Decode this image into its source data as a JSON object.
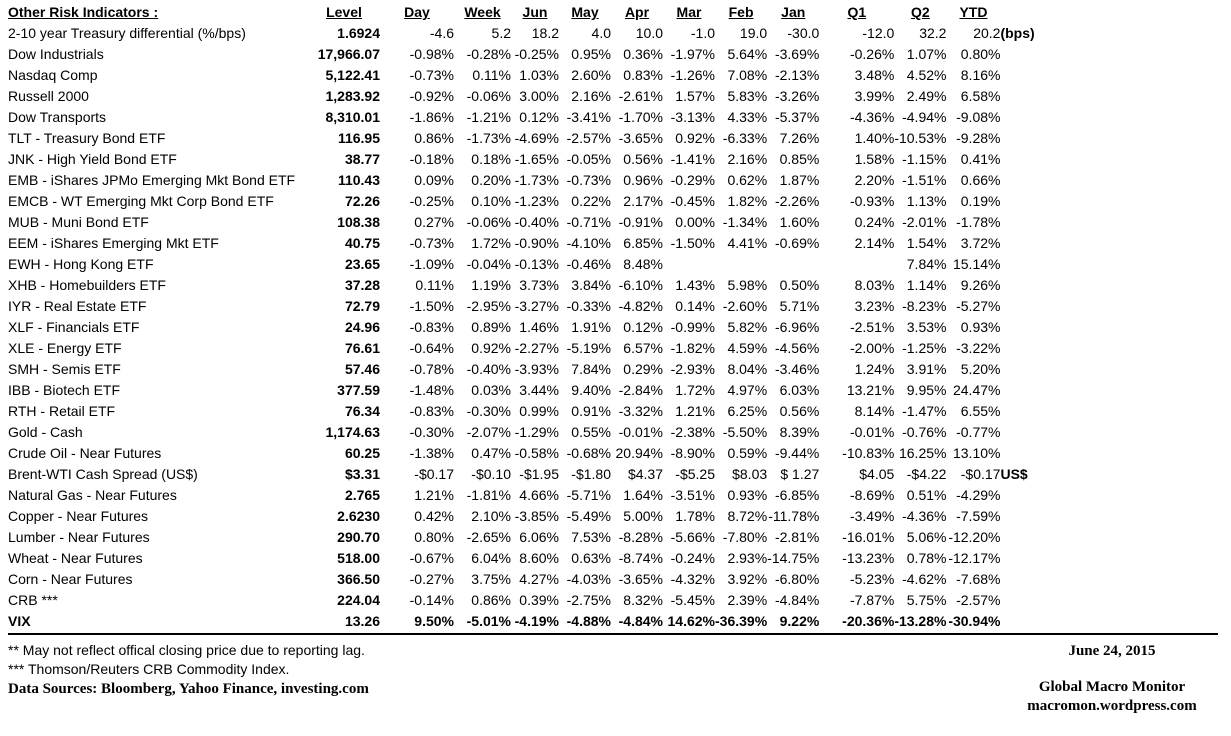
{
  "header": {
    "title": "Other Risk Indicators :",
    "columns": [
      "Level",
      "Day",
      "Week",
      "Jun",
      "May",
      "Apr",
      "Mar",
      "Feb",
      "Jan",
      "Q1",
      "Q2",
      "YTD"
    ]
  },
  "table": {
    "rows": [
      {
        "label": "2-10 year Treasury differential (%/bps)",
        "level": "1.6924",
        "values": [
          "-4.6",
          "5.2",
          "18.2",
          "4.0",
          "10.0",
          "-1.0",
          "19.0",
          "-30.0",
          "-12.0",
          "32.2",
          "20.2"
        ],
        "suffix": "(bps)",
        "bold": false
      },
      {
        "label": "Dow Industrials",
        "level": "17,966.07",
        "values": [
          "-0.98%",
          "-0.28%",
          "-0.25%",
          "0.95%",
          "0.36%",
          "-1.97%",
          "5.64%",
          "-3.69%",
          "-0.26%",
          "1.07%",
          "0.80%"
        ],
        "suffix": "",
        "bold": false
      },
      {
        "label": "Nasdaq Comp",
        "level": "5,122.41",
        "values": [
          "-0.73%",
          "0.11%",
          "1.03%",
          "2.60%",
          "0.83%",
          "-1.26%",
          "7.08%",
          "-2.13%",
          "3.48%",
          "4.52%",
          "8.16%"
        ],
        "suffix": "",
        "bold": false
      },
      {
        "label": "Russell 2000",
        "level": "1,283.92",
        "values": [
          "-0.92%",
          "-0.06%",
          "3.00%",
          "2.16%",
          "-2.61%",
          "1.57%",
          "5.83%",
          "-3.26%",
          "3.99%",
          "2.49%",
          "6.58%"
        ],
        "suffix": "",
        "bold": false
      },
      {
        "label": "Dow Transports",
        "level": "8,310.01",
        "values": [
          "-1.86%",
          "-1.21%",
          "0.12%",
          "-3.41%",
          "-1.70%",
          "-3.13%",
          "4.33%",
          "-5.37%",
          "-4.36%",
          "-4.94%",
          "-9.08%"
        ],
        "suffix": "",
        "bold": false
      },
      {
        "label": "TLT - Treasury Bond ETF",
        "level": "116.95",
        "values": [
          "0.86%",
          "-1.73%",
          "-4.69%",
          "-2.57%",
          "-3.65%",
          "0.92%",
          "-6.33%",
          "7.26%",
          "1.40%",
          "-10.53%",
          "-9.28%"
        ],
        "suffix": "",
        "bold": false
      },
      {
        "label": "JNK - High Yield Bond ETF",
        "level": "38.77",
        "values": [
          "-0.18%",
          "0.18%",
          "-1.65%",
          "-0.05%",
          "0.56%",
          "-1.41%",
          "2.16%",
          "0.85%",
          "1.58%",
          "-1.15%",
          "0.41%"
        ],
        "suffix": "",
        "bold": false
      },
      {
        "label": "EMB - iShares JPMo Emerging Mkt Bond ETF",
        "level": "110.43",
        "values": [
          "0.09%",
          "0.20%",
          "-1.73%",
          "-0.73%",
          "0.96%",
          "-0.29%",
          "0.62%",
          "1.87%",
          "2.20%",
          "-1.51%",
          "0.66%"
        ],
        "suffix": "",
        "bold": false
      },
      {
        "label": "EMCB - WT Emerging Mkt Corp Bond ETF",
        "level": "72.26",
        "values": [
          "-0.25%",
          "0.10%",
          "-1.23%",
          "0.22%",
          "2.17%",
          "-0.45%",
          "1.82%",
          "-2.26%",
          "-0.93%",
          "1.13%",
          "0.19%"
        ],
        "suffix": "",
        "bold": false
      },
      {
        "label": "MUB - Muni Bond ETF",
        "level": "108.38",
        "values": [
          "0.27%",
          "-0.06%",
          "-0.40%",
          "-0.71%",
          "-0.91%",
          "0.00%",
          "-1.34%",
          "1.60%",
          "0.24%",
          "-2.01%",
          "-1.78%"
        ],
        "suffix": "",
        "bold": false
      },
      {
        "label": "EEM - iShares Emerging Mkt ETF",
        "level": "40.75",
        "values": [
          "-0.73%",
          "1.72%",
          "-0.90%",
          "-4.10%",
          "6.85%",
          "-1.50%",
          "4.41%",
          "-0.69%",
          "2.14%",
          "1.54%",
          "3.72%"
        ],
        "suffix": "",
        "bold": false
      },
      {
        "label": "EWH - Hong Kong ETF",
        "level": "23.65",
        "values": [
          "-1.09%",
          "-0.04%",
          "-0.13%",
          "-0.46%",
          "8.48%",
          "",
          "",
          "",
          "",
          "7.84%",
          "15.14%"
        ],
        "suffix": "",
        "bold": false
      },
      {
        "label": "XHB - Homebuilders ETF",
        "level": "37.28",
        "values": [
          "0.11%",
          "1.19%",
          "3.73%",
          "3.84%",
          "-6.10%",
          "1.43%",
          "5.98%",
          "0.50%",
          "8.03%",
          "1.14%",
          "9.26%"
        ],
        "suffix": "",
        "bold": false
      },
      {
        "label": "IYR - Real Estate ETF",
        "level": "72.79",
        "values": [
          "-1.50%",
          "-2.95%",
          "-3.27%",
          "-0.33%",
          "-4.82%",
          "0.14%",
          "-2.60%",
          "5.71%",
          "3.23%",
          "-8.23%",
          "-5.27%"
        ],
        "suffix": "",
        "bold": false
      },
      {
        "label": "XLF - Financials ETF",
        "level": "24.96",
        "values": [
          "-0.83%",
          "0.89%",
          "1.46%",
          "1.91%",
          "0.12%",
          "-0.99%",
          "5.82%",
          "-6.96%",
          "-2.51%",
          "3.53%",
          "0.93%"
        ],
        "suffix": "",
        "bold": false
      },
      {
        "label": "XLE - Energy ETF",
        "level": "76.61",
        "values": [
          "-0.64%",
          "0.92%",
          "-2.27%",
          "-5.19%",
          "6.57%",
          "-1.82%",
          "4.59%",
          "-4.56%",
          "-2.00%",
          "-1.25%",
          "-3.22%"
        ],
        "suffix": "",
        "bold": false
      },
      {
        "label": "SMH - Semis ETF",
        "level": "57.46",
        "values": [
          "-0.78%",
          "-0.40%",
          "-3.93%",
          "7.84%",
          "0.29%",
          "-2.93%",
          "8.04%",
          "-3.46%",
          "1.24%",
          "3.91%",
          "5.20%"
        ],
        "suffix": "",
        "bold": false
      },
      {
        "label": "IBB - Biotech ETF",
        "level": "377.59",
        "values": [
          "-1.48%",
          "0.03%",
          "3.44%",
          "9.40%",
          "-2.84%",
          "1.72%",
          "4.97%",
          "6.03%",
          "13.21%",
          "9.95%",
          "24.47%"
        ],
        "suffix": "",
        "bold": false
      },
      {
        "label": "RTH - Retail ETF",
        "level": "76.34",
        "values": [
          "-0.83%",
          "-0.30%",
          "0.99%",
          "0.91%",
          "-3.32%",
          "1.21%",
          "6.25%",
          "0.56%",
          "8.14%",
          "-1.47%",
          "6.55%"
        ],
        "suffix": "",
        "bold": false
      },
      {
        "label": "Gold - Cash",
        "level": "1,174.63",
        "values": [
          "-0.30%",
          "-2.07%",
          "-1.29%",
          "0.55%",
          "-0.01%",
          "-2.38%",
          "-5.50%",
          "8.39%",
          "-0.01%",
          "-0.76%",
          "-0.77%"
        ],
        "suffix": "",
        "bold": false
      },
      {
        "label": "Crude Oil - Near Futures",
        "level": "60.25",
        "values": [
          "-1.38%",
          "0.47%",
          "-0.58%",
          "-0.68%",
          "20.94%",
          "-8.90%",
          "0.59%",
          "-9.44%",
          "-10.83%",
          "16.25%",
          "13.10%"
        ],
        "suffix": "",
        "bold": false
      },
      {
        "label": "Brent-WTI Cash Spread (US$)",
        "level": "$3.31",
        "values": [
          "-$0.17",
          "-$0.10",
          "-$1.95",
          "-$1.80",
          "$4.37",
          "-$5.25",
          "$8.03",
          "$ 1.27",
          "$4.05",
          "-$4.22",
          "-$0.17"
        ],
        "suffix": "US$",
        "bold": false
      },
      {
        "label": "Natural Gas - Near Futures",
        "level": "2.765",
        "values": [
          "1.21%",
          "-1.81%",
          "4.66%",
          "-5.71%",
          "1.64%",
          "-3.51%",
          "0.93%",
          "-6.85%",
          "-8.69%",
          "0.51%",
          "-4.29%"
        ],
        "suffix": "",
        "bold": false
      },
      {
        "label": "Copper - Near Futures",
        "level": "2.6230",
        "values": [
          "0.42%",
          "2.10%",
          "-3.85%",
          "-5.49%",
          "5.00%",
          "1.78%",
          "8.72%",
          "-11.78%",
          "-3.49%",
          "-4.36%",
          "-7.59%"
        ],
        "suffix": "",
        "bold": false
      },
      {
        "label": "Lumber - Near Futures",
        "level": "290.70",
        "values": [
          "0.80%",
          "-2.65%",
          "6.06%",
          "7.53%",
          "-8.28%",
          "-5.66%",
          "-7.80%",
          "-2.81%",
          "-16.01%",
          "5.06%",
          "-12.20%"
        ],
        "suffix": "",
        "bold": false
      },
      {
        "label": "Wheat - Near Futures",
        "level": "518.00",
        "values": [
          "-0.67%",
          "6.04%",
          "8.60%",
          "0.63%",
          "-8.74%",
          "-0.24%",
          "2.93%",
          "-14.75%",
          "-13.23%",
          "0.78%",
          "-12.17%"
        ],
        "suffix": "",
        "bold": false
      },
      {
        "label": "Corn - Near Futures",
        "level": "366.50",
        "values": [
          "-0.27%",
          "3.75%",
          "4.27%",
          "-4.03%",
          "-3.65%",
          "-4.32%",
          "3.92%",
          "-6.80%",
          "-5.23%",
          "-4.62%",
          "-7.68%"
        ],
        "suffix": "",
        "bold": false
      },
      {
        "label": "CRB ***",
        "level": "224.04",
        "values": [
          "-0.14%",
          "0.86%",
          "0.39%",
          "-2.75%",
          "8.32%",
          "-5.45%",
          "2.39%",
          "-4.84%",
          "-7.87%",
          "5.75%",
          "-2.57%"
        ],
        "suffix": "",
        "bold": false
      },
      {
        "label": "VIX",
        "level": "13.26",
        "values": [
          "9.50%",
          "-5.01%",
          "-4.19%",
          "-4.88%",
          "-4.84%",
          "14.62%",
          "-36.39%",
          "9.22%",
          "-20.36%",
          "-13.28%",
          "-30.94%"
        ],
        "suffix": "",
        "bold": true
      }
    ]
  },
  "footer": {
    "footnote1": "**  May not reflect offical closing price due to reporting lag.",
    "footnote2": "*** Thomson/Reuters CRB Commodity Index.",
    "data_sources": "Data Sources:  Bloomberg,  Yahoo Finance, investing.com",
    "date": "June 24, 2015",
    "brand": "Global Macro Monitor",
    "site": "macromon.wordpress.com"
  }
}
